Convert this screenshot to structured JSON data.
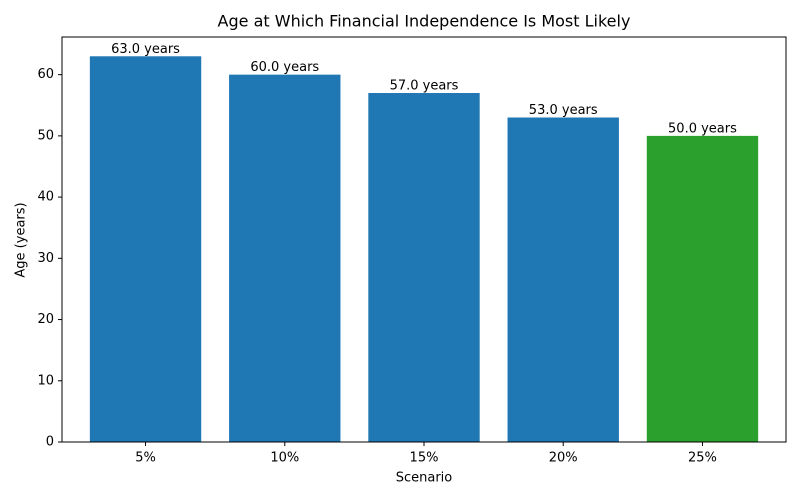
{
  "chart_data": {
    "type": "bar",
    "title": "Age at Which Financial Independence Is Most Likely",
    "x_label": "Scenario",
    "y_label": "Age (years)",
    "categories": [
      "5%",
      "10%",
      "15%",
      "20%",
      "25%"
    ],
    "values": [
      63,
      60,
      57,
      53,
      50
    ],
    "value_labels": [
      "63.0 years",
      "60.0 years",
      "57.0 years",
      "53.0 years",
      "50.0 years"
    ],
    "colors": [
      "#1f77b4",
      "#1f77b4",
      "#1f77b4",
      "#1f77b4",
      "#2ca02c"
    ],
    "ylim": [
      0,
      66.15
    ],
    "yticks": [
      0,
      10,
      20,
      30,
      40,
      50,
      60
    ],
    "grid": false
  }
}
